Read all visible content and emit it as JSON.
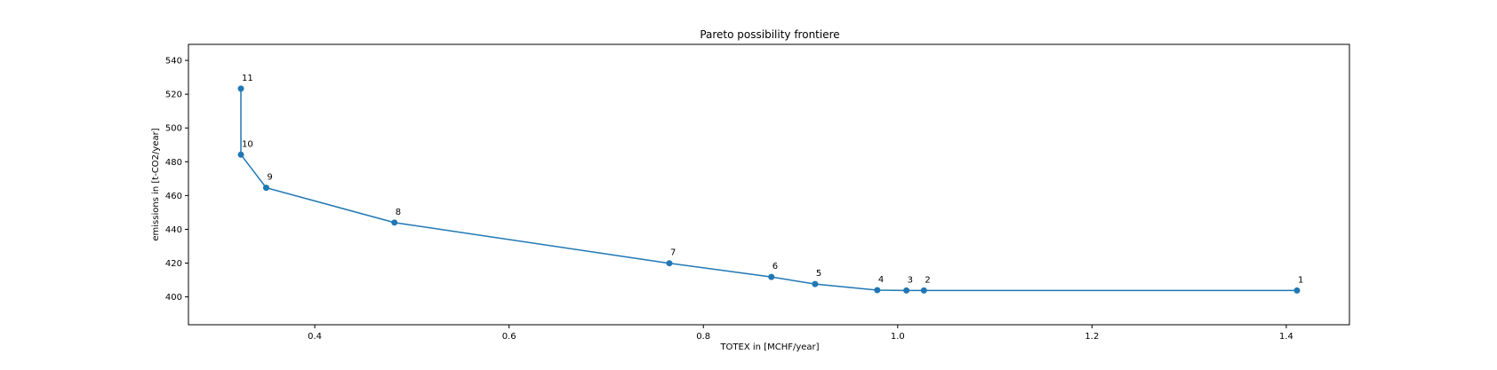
{
  "chart_data": {
    "type": "line",
    "title": "Pareto possibility frontiere",
    "xlabel": "TOTEX in [MCHF/year]",
    "ylabel": "emissions in [t-CO2/year]",
    "xlim": [
      0.27,
      1.465
    ],
    "ylim": [
      383.5,
      549.5
    ],
    "xticks": [
      0.4,
      0.6,
      0.8,
      1.0,
      1.2,
      1.4
    ],
    "xtick_labels": [
      "0.4",
      "0.6",
      "0.8",
      "1.0",
      "1.2",
      "1.4"
    ],
    "yticks": [
      400,
      420,
      440,
      460,
      480,
      500,
      520,
      540
    ],
    "ytick_labels": [
      "400",
      "420",
      "440",
      "460",
      "480",
      "500",
      "520",
      "540"
    ],
    "grid": false,
    "color": "#1f77b4",
    "points": [
      {
        "label": "1",
        "x": 1.411,
        "y": 403.8
      },
      {
        "label": "2",
        "x": 1.027,
        "y": 403.8
      },
      {
        "label": "3",
        "x": 1.009,
        "y": 403.8
      },
      {
        "label": "4",
        "x": 0.979,
        "y": 404.0
      },
      {
        "label": "5",
        "x": 0.915,
        "y": 407.6
      },
      {
        "label": "6",
        "x": 0.87,
        "y": 411.8
      },
      {
        "label": "7",
        "x": 0.765,
        "y": 419.9
      },
      {
        "label": "8",
        "x": 0.482,
        "y": 444.0
      },
      {
        "label": "9",
        "x": 0.35,
        "y": 464.6
      },
      {
        "label": "10",
        "x": 0.324,
        "y": 484.2
      },
      {
        "label": "11",
        "x": 0.324,
        "y": 523.3
      }
    ]
  }
}
